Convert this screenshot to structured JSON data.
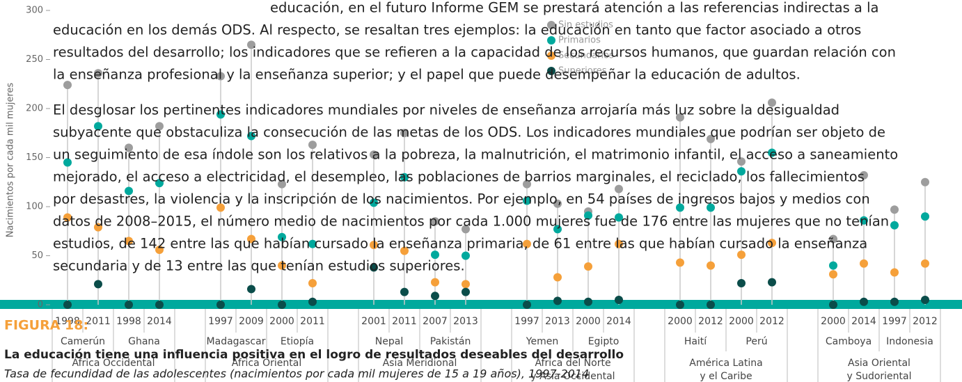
{
  "chart_data": {
    "type": "dot",
    "figure_label": "FIGURA 18:",
    "title": "La educación tiene una influencia positiva en el logro de resultados deseables del desarrollo",
    "subtitle": "Tasa de fecundidad de las adolescentes (nacimientos por cada mil mujeres de 15 a 19 años), 1997-2014",
    "y_label": "Nacimientos por cada mil mujeres",
    "categories": [
      "1998",
      "2011",
      "1998",
      "2014",
      "1997",
      "2009",
      "2000",
      "2011",
      "2001",
      "2011",
      "2007",
      "2013",
      "1997",
      "2013",
      "2000",
      "2014",
      "2000",
      "2012",
      "2000",
      "2012",
      "2000",
      "2014",
      "1997",
      "2012"
    ],
    "countries": [
      "Camerún",
      "Ghana",
      "Madagascar",
      "Etiopía",
      "Nepal",
      "Pakistán",
      "Yemen",
      "Egipto",
      "Haití",
      "Perú",
      "Camboya",
      "Indonesia"
    ],
    "regions": [
      [
        "África Occidental"
      ],
      [
        "África Oriental"
      ],
      [
        "Asia Meridional"
      ],
      [
        "África del Norte",
        "y Asia Occidental"
      ],
      [
        "América Latina",
        "y el Caribe"
      ],
      [
        "Asia Oriental",
        "y Sudoriental"
      ]
    ],
    "series": [
      {
        "name": "Sin estudios",
        "color": "#9d9d9d",
        "values": [
          224,
          236,
          160,
          182,
          233,
          265,
          123,
          163,
          153,
          175,
          85,
          77,
          123,
          103,
          95,
          118,
          191,
          169,
          146,
          206,
          67,
          132,
          97,
          125
        ]
      },
      {
        "name": "Primarios",
        "color": "#00a99d",
        "values": [
          145,
          182,
          116,
          124,
          194,
          172,
          69,
          62,
          104,
          130,
          51,
          50,
          106,
          77,
          91,
          89,
          99,
          99,
          136,
          155,
          40,
          86,
          81,
          90
        ]
      },
      {
        "name": "Secundarios",
        "color": "#f5a03a",
        "values": [
          89,
          79,
          65,
          56,
          99,
          67,
          40,
          22,
          61,
          55,
          23,
          21,
          62,
          28,
          39,
          62,
          43,
          40,
          51,
          63,
          31,
          42,
          33,
          42
        ]
      },
      {
        "name": "Superiores",
        "color": "#0b4d4a",
        "values": [
          0,
          21,
          0,
          0,
          0,
          16,
          0,
          3,
          38,
          13,
          9,
          13,
          0,
          4,
          3,
          5,
          0,
          0,
          22,
          23,
          0,
          3,
          3,
          5
        ]
      }
    ],
    "ylim": [
      0,
      300
    ],
    "yticks": [
      0,
      50,
      100,
      150,
      200,
      250,
      300
    ]
  },
  "body": {
    "lines": [
      "educación, en el futuro Informe GEM se prestará atención a las referencias indirectas a la",
      "educación en los demás ODS. Al respecto, se resaltan tres ejemplos: la educación en tanto que factor asociado a otros",
      "resultados del desarrollo; los indicadores que se refieren a la capacidad de los recursos humanos, que guardan relación con",
      "la enseñanza profesional y la enseñanza superior; y el papel que puede desempeñar la educación de adultos.",
      "El desglosar los pertinentes indicadores mundiales por niveles de enseñanza arrojaría más luz sobre la desigualdad",
      "subyacente que obstaculiza la consecución de las metas de los ODS. Los indicadores mundiales que podrían ser objeto de",
      "un seguimiento de esa índole son los relativos a la pobreza, la malnutrición, el matrimonio infantil, el acceso a saneamiento",
      "mejorado, el acceso a electricidad, el desempleo, las poblaciones de barrios marginales, el reciclado, los fallecimientos",
      "por desastres, la violencia y la inscripción de los nacimientos. Por ejemplo, en 54 países de ingresos bajos y medios con",
      "datos de 2008–2015, el número medio de nacimientos por cada 1.000 mujeres fue de 176 entre las mujeres que no tenían",
      "estudios, de 142 entre las que habían cursado la enseñanza primaria, de 61 entre las que habían cursado la enseñanza",
      "secundaria y de 13 entre las que tenían estudios superiores."
    ]
  }
}
